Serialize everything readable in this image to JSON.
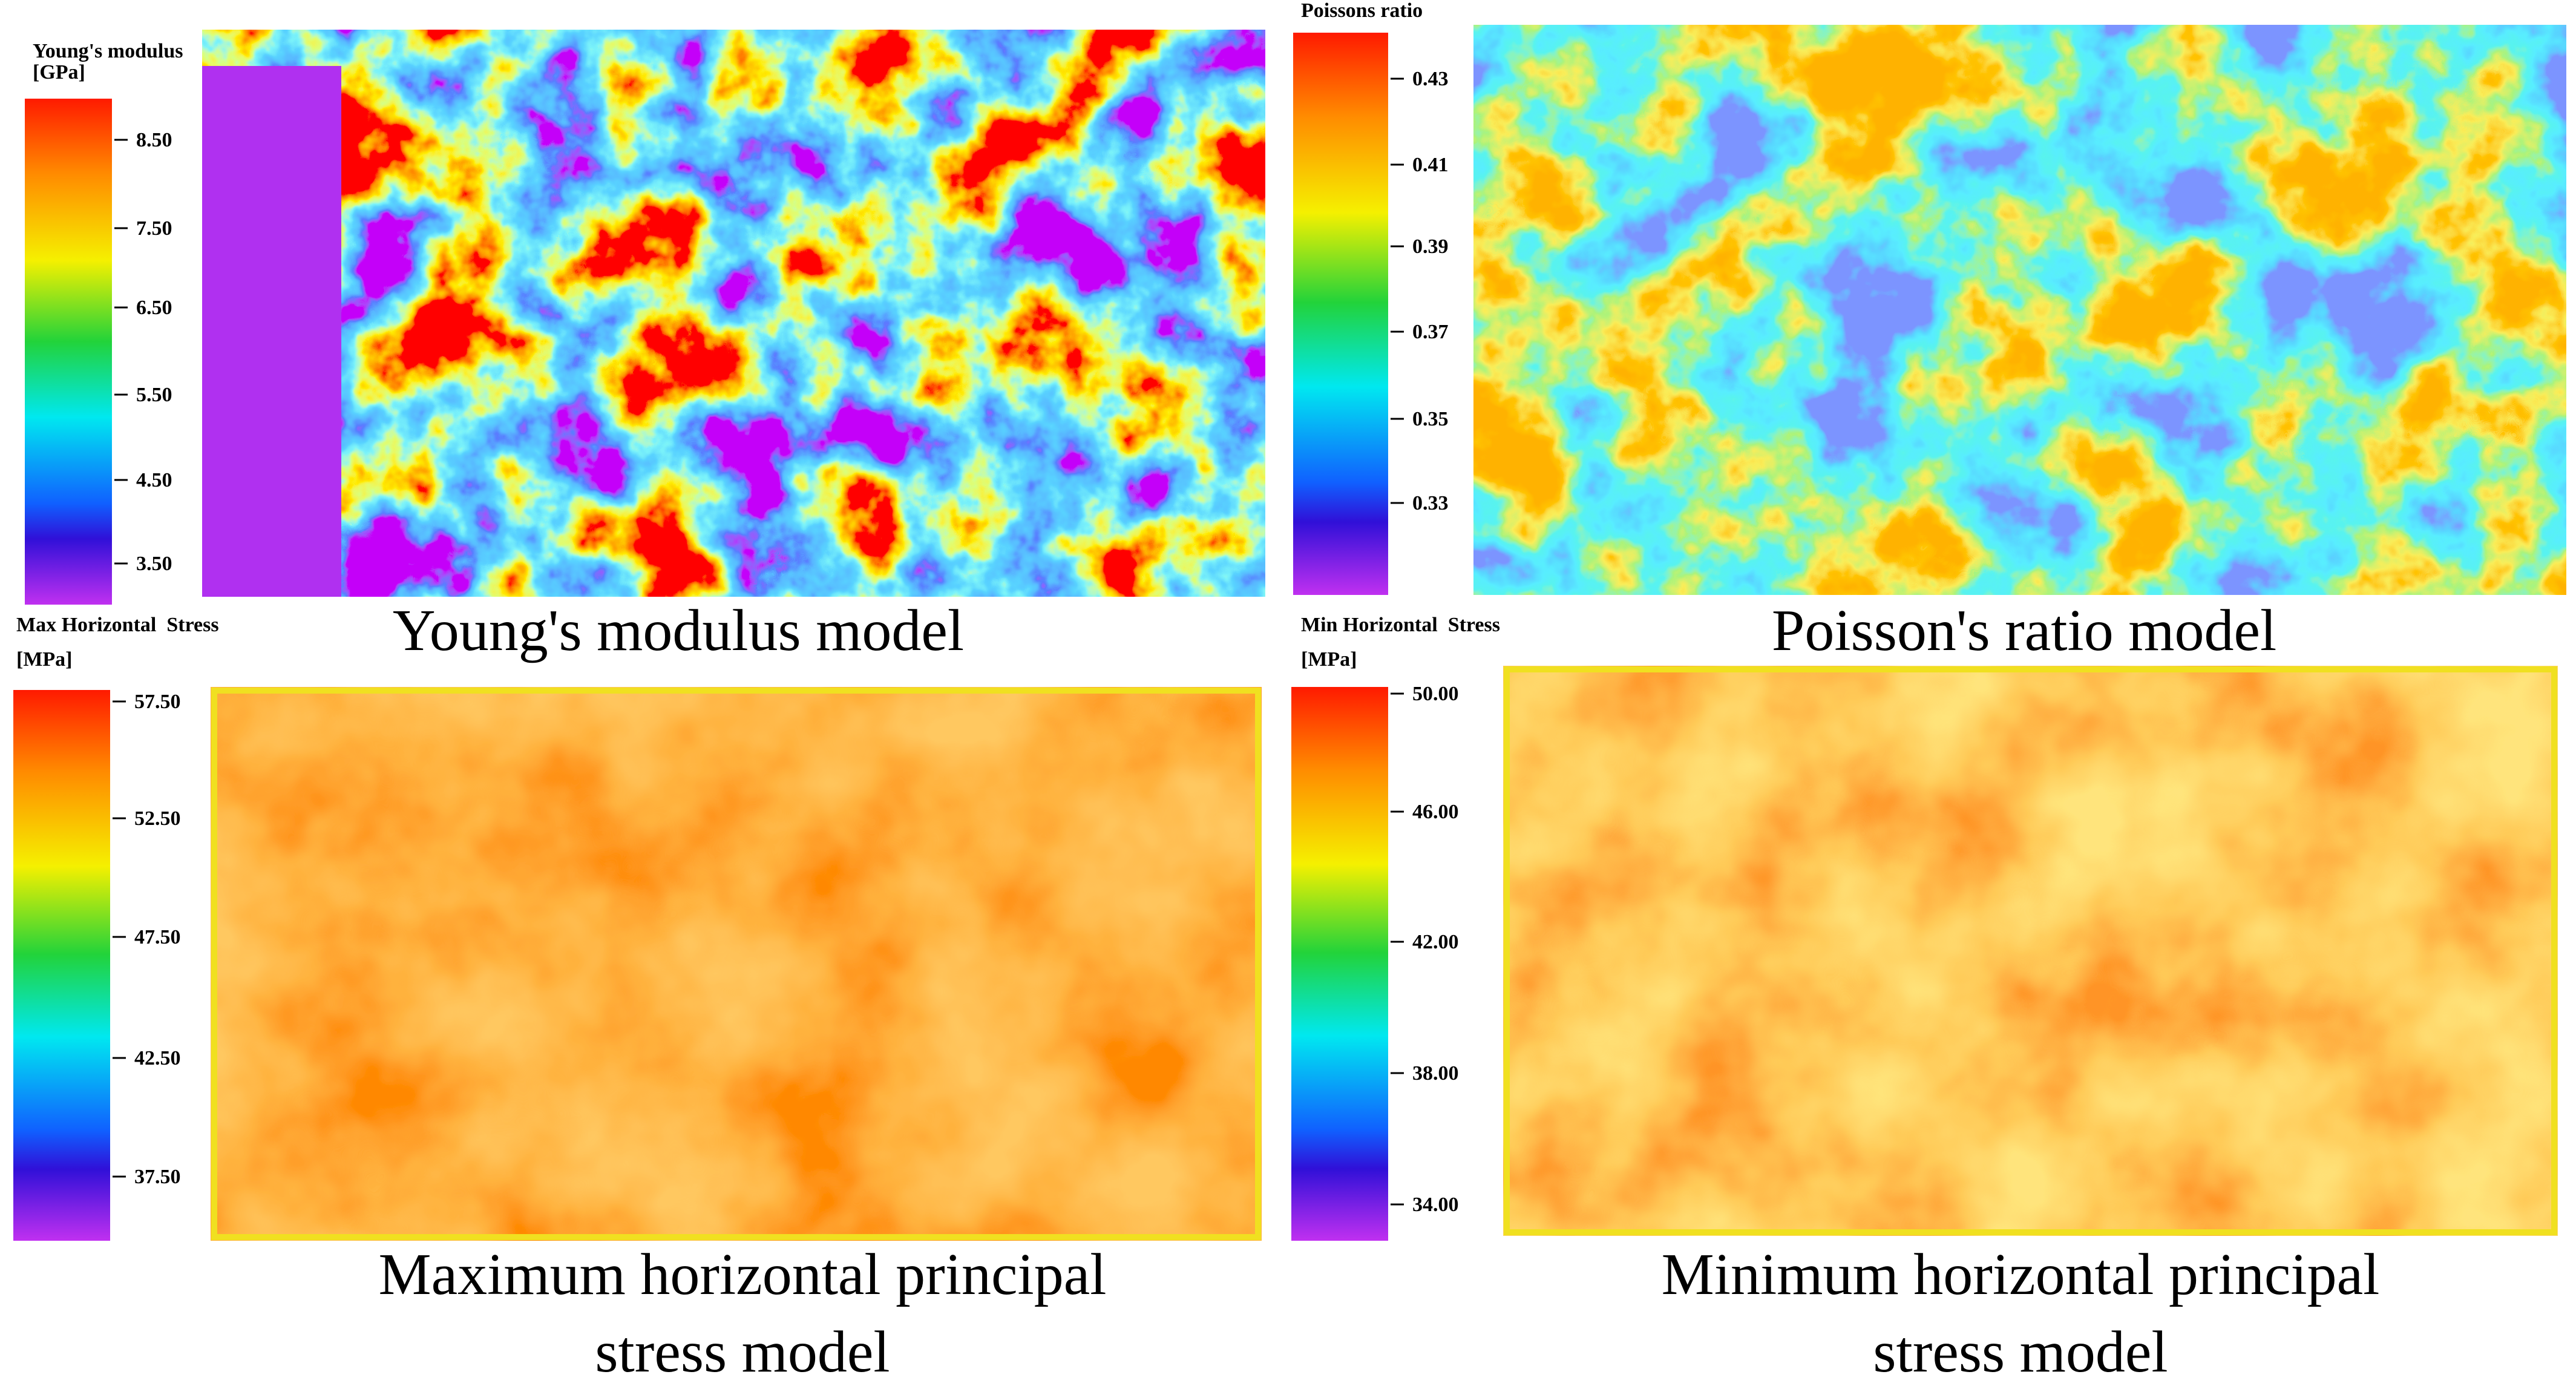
{
  "panels": [
    {
      "legend_title": "Young's modulus",
      "legend_unit": "[GPa]",
      "ticks": [
        "8.50",
        "7.50",
        "6.50",
        "5.50",
        "4.50",
        "3.50"
      ],
      "caption": [
        "Young's modulus model"
      ]
    },
    {
      "legend_title": "Poissons ratio",
      "ticks": [
        "0.43",
        "0.41",
        "0.39",
        "0.37",
        "0.35",
        "0.33"
      ],
      "caption": [
        "Poisson's ratio model"
      ]
    },
    {
      "legend_title": "Max Horizontal  Stress",
      "legend_unit": "[MPa]",
      "ticks": [
        "57.50",
        "52.50",
        "47.50",
        "42.50",
        "37.50"
      ],
      "caption": [
        "Maximum horizontal principal",
        "stress model"
      ]
    },
    {
      "legend_title": "Min Horizontal  Stress",
      "legend_unit": "[MPa]",
      "ticks": [
        "50.00",
        "46.00",
        "42.00",
        "38.00",
        "34.00"
      ],
      "caption": [
        "Minimum horizontal principal",
        "stress model"
      ]
    }
  ]
}
